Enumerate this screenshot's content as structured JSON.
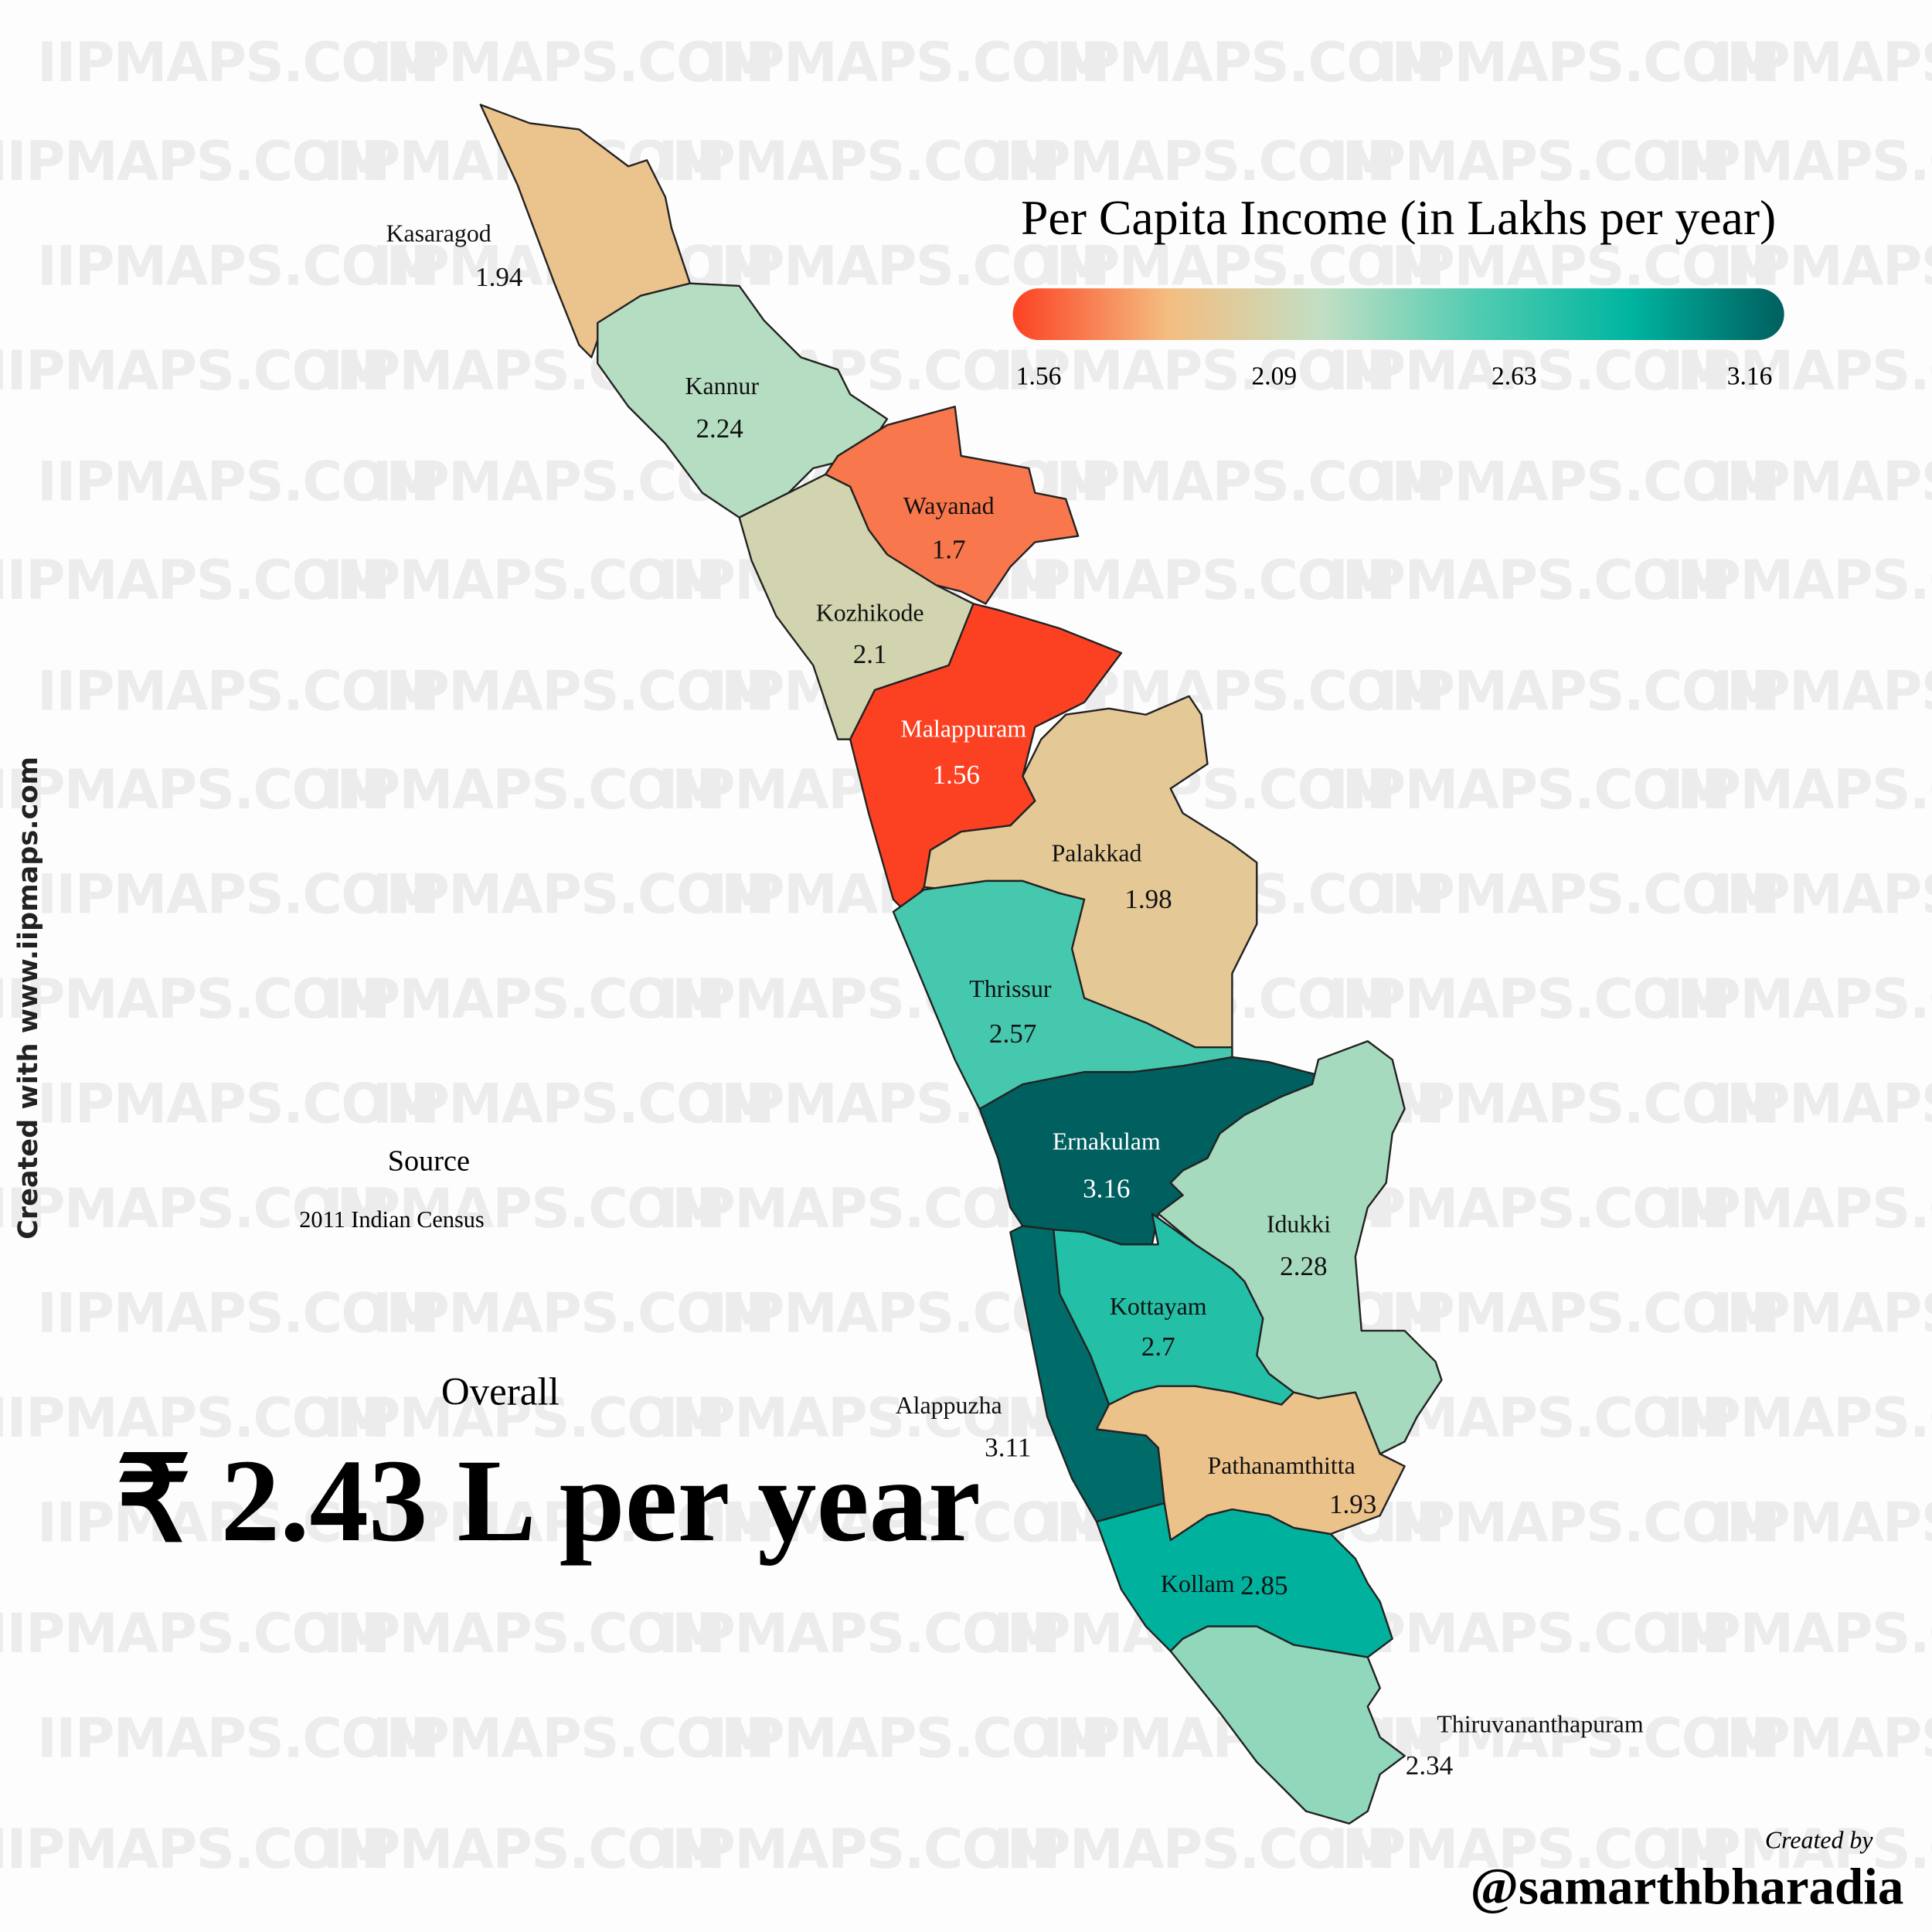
{
  "title": "Per Capita Income (in Lakhs per year)",
  "watermark": "IIPMAPS.COM",
  "side_note": "Created with www.iipmaps.com",
  "legend": {
    "lim": [
      1.56,
      3.16
    ],
    "ticks": [
      1.56,
      2.09,
      2.63,
      3.16
    ],
    "colors": [
      "#fc4123",
      "#f4bd80",
      "#c2dfc4",
      "#52ccb1",
      "#00b5a0",
      "#005f5f"
    ]
  },
  "regions": [
    {
      "name": "Kasaragod",
      "value": 1.94
    },
    {
      "name": "Kannur",
      "value": 2.24
    },
    {
      "name": "Wayanad",
      "value": 1.7
    },
    {
      "name": "Kozhikode",
      "value": 2.1
    },
    {
      "name": "Malappuram",
      "value": 1.56
    },
    {
      "name": "Palakkad",
      "value": 1.98
    },
    {
      "name": "Thrissur",
      "value": 2.57
    },
    {
      "name": "Ernakulam",
      "value": 3.16
    },
    {
      "name": "Idukki",
      "value": 2.28
    },
    {
      "name": "Kottayam",
      "value": 2.7
    },
    {
      "name": "Alappuzha",
      "value": 3.11
    },
    {
      "name": "Pathanamthitta",
      "value": 1.93
    },
    {
      "name": "Kollam",
      "value": 2.85
    },
    {
      "name": "Thiruvananthapuram",
      "value": 2.34
    }
  ],
  "source": {
    "heading": "Source",
    "text": "2011 Indian Census"
  },
  "overall": {
    "heading": "Overall",
    "value": "₹ 2.43 L per year"
  },
  "credit": {
    "heading": "Created by",
    "handle": "@samarthbharadia"
  }
}
